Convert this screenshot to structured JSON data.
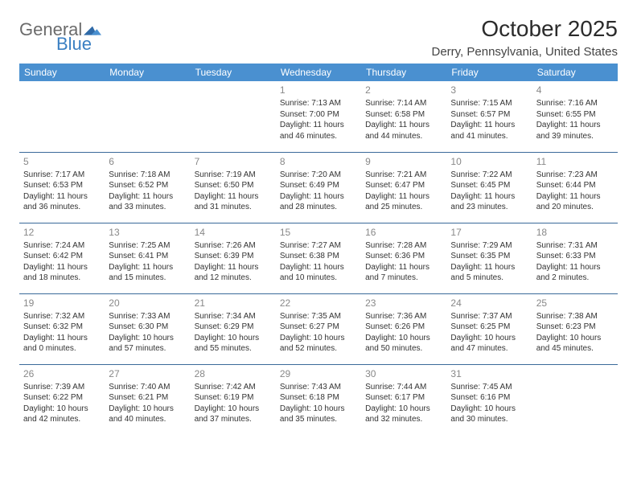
{
  "logo": {
    "general": "General",
    "blue": "Blue"
  },
  "title": "October 2025",
  "location": "Derry, Pennsylvania, United States",
  "colors": {
    "header_bg": "#4a90d0",
    "header_text": "#ffffff",
    "border": "#3a6a9a",
    "daynum": "#888888",
    "body_text": "#333333",
    "logo_gray": "#6b6b6b",
    "logo_blue": "#3a7fc2"
  },
  "weekdays": [
    "Sunday",
    "Monday",
    "Tuesday",
    "Wednesday",
    "Thursday",
    "Friday",
    "Saturday"
  ],
  "weeks": [
    [
      null,
      null,
      null,
      {
        "n": "1",
        "sr": "7:13 AM",
        "ss": "7:00 PM",
        "dl": "11 hours and 46 minutes."
      },
      {
        "n": "2",
        "sr": "7:14 AM",
        "ss": "6:58 PM",
        "dl": "11 hours and 44 minutes."
      },
      {
        "n": "3",
        "sr": "7:15 AM",
        "ss": "6:57 PM",
        "dl": "11 hours and 41 minutes."
      },
      {
        "n": "4",
        "sr": "7:16 AM",
        "ss": "6:55 PM",
        "dl": "11 hours and 39 minutes."
      }
    ],
    [
      {
        "n": "5",
        "sr": "7:17 AM",
        "ss": "6:53 PM",
        "dl": "11 hours and 36 minutes."
      },
      {
        "n": "6",
        "sr": "7:18 AM",
        "ss": "6:52 PM",
        "dl": "11 hours and 33 minutes."
      },
      {
        "n": "7",
        "sr": "7:19 AM",
        "ss": "6:50 PM",
        "dl": "11 hours and 31 minutes."
      },
      {
        "n": "8",
        "sr": "7:20 AM",
        "ss": "6:49 PM",
        "dl": "11 hours and 28 minutes."
      },
      {
        "n": "9",
        "sr": "7:21 AM",
        "ss": "6:47 PM",
        "dl": "11 hours and 25 minutes."
      },
      {
        "n": "10",
        "sr": "7:22 AM",
        "ss": "6:45 PM",
        "dl": "11 hours and 23 minutes."
      },
      {
        "n": "11",
        "sr": "7:23 AM",
        "ss": "6:44 PM",
        "dl": "11 hours and 20 minutes."
      }
    ],
    [
      {
        "n": "12",
        "sr": "7:24 AM",
        "ss": "6:42 PM",
        "dl": "11 hours and 18 minutes."
      },
      {
        "n": "13",
        "sr": "7:25 AM",
        "ss": "6:41 PM",
        "dl": "11 hours and 15 minutes."
      },
      {
        "n": "14",
        "sr": "7:26 AM",
        "ss": "6:39 PM",
        "dl": "11 hours and 12 minutes."
      },
      {
        "n": "15",
        "sr": "7:27 AM",
        "ss": "6:38 PM",
        "dl": "11 hours and 10 minutes."
      },
      {
        "n": "16",
        "sr": "7:28 AM",
        "ss": "6:36 PM",
        "dl": "11 hours and 7 minutes."
      },
      {
        "n": "17",
        "sr": "7:29 AM",
        "ss": "6:35 PM",
        "dl": "11 hours and 5 minutes."
      },
      {
        "n": "18",
        "sr": "7:31 AM",
        "ss": "6:33 PM",
        "dl": "11 hours and 2 minutes."
      }
    ],
    [
      {
        "n": "19",
        "sr": "7:32 AM",
        "ss": "6:32 PM",
        "dl": "11 hours and 0 minutes."
      },
      {
        "n": "20",
        "sr": "7:33 AM",
        "ss": "6:30 PM",
        "dl": "10 hours and 57 minutes."
      },
      {
        "n": "21",
        "sr": "7:34 AM",
        "ss": "6:29 PM",
        "dl": "10 hours and 55 minutes."
      },
      {
        "n": "22",
        "sr": "7:35 AM",
        "ss": "6:27 PM",
        "dl": "10 hours and 52 minutes."
      },
      {
        "n": "23",
        "sr": "7:36 AM",
        "ss": "6:26 PM",
        "dl": "10 hours and 50 minutes."
      },
      {
        "n": "24",
        "sr": "7:37 AM",
        "ss": "6:25 PM",
        "dl": "10 hours and 47 minutes."
      },
      {
        "n": "25",
        "sr": "7:38 AM",
        "ss": "6:23 PM",
        "dl": "10 hours and 45 minutes."
      }
    ],
    [
      {
        "n": "26",
        "sr": "7:39 AM",
        "ss": "6:22 PM",
        "dl": "10 hours and 42 minutes."
      },
      {
        "n": "27",
        "sr": "7:40 AM",
        "ss": "6:21 PM",
        "dl": "10 hours and 40 minutes."
      },
      {
        "n": "28",
        "sr": "7:42 AM",
        "ss": "6:19 PM",
        "dl": "10 hours and 37 minutes."
      },
      {
        "n": "29",
        "sr": "7:43 AM",
        "ss": "6:18 PM",
        "dl": "10 hours and 35 minutes."
      },
      {
        "n": "30",
        "sr": "7:44 AM",
        "ss": "6:17 PM",
        "dl": "10 hours and 32 minutes."
      },
      {
        "n": "31",
        "sr": "7:45 AM",
        "ss": "6:16 PM",
        "dl": "10 hours and 30 minutes."
      },
      null
    ]
  ],
  "labels": {
    "sunrise": "Sunrise:",
    "sunset": "Sunset:",
    "daylight": "Daylight:"
  }
}
